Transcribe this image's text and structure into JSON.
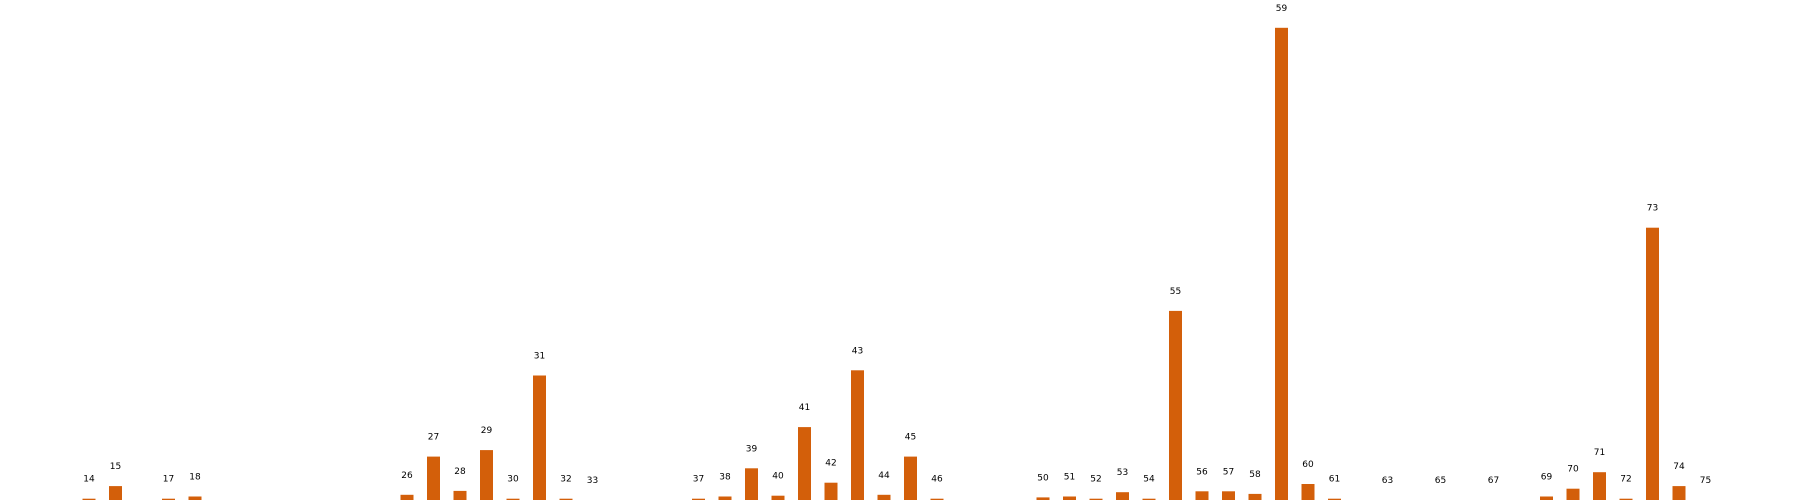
{
  "chart_data": {
    "type": "bar",
    "categories": [
      "14",
      "15",
      "17",
      "18",
      "26",
      "27",
      "28",
      "29",
      "30",
      "31",
      "32",
      "33",
      "37",
      "38",
      "39",
      "40",
      "41",
      "42",
      "43",
      "44",
      "45",
      "46",
      "50",
      "51",
      "52",
      "53",
      "54",
      "55",
      "56",
      "57",
      "58",
      "59",
      "60",
      "61",
      "63",
      "65",
      "67",
      "69",
      "70",
      "71",
      "72",
      "73",
      "74",
      "75"
    ],
    "values": [
      0.3,
      3.2,
      0.3,
      0.8,
      1.2,
      10.0,
      2.1,
      11.5,
      0.3,
      28.7,
      0.3,
      0,
      0.3,
      0.8,
      7.3,
      1.0,
      16.8,
      4.0,
      29.9,
      1.2,
      10.0,
      0.3,
      0.6,
      0.8,
      0.3,
      1.8,
      0.3,
      43.6,
      2.0,
      2.0,
      1.4,
      108.9,
      3.7,
      0.3,
      0,
      0,
      0,
      0.8,
      2.6,
      6.4,
      0.3,
      62.8,
      3.2,
      0
    ],
    "color": "#d35f0a",
    "ylim": [
      0,
      110
    ],
    "grid": false,
    "axes_visible": false,
    "title": "",
    "xlabel": "",
    "ylabel": ""
  }
}
